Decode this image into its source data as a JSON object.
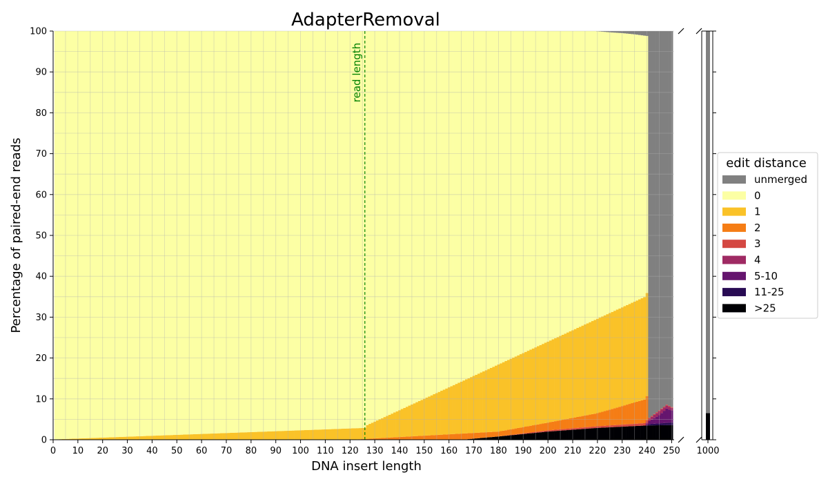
{
  "chart_data": {
    "type": "bar",
    "title": "AdapterRemoval",
    "xlabel": "DNA insert length",
    "ylabel": "Percentage of paired-end reads",
    "xlim": [
      0,
      251
    ],
    "ylim": [
      0,
      100
    ],
    "x_ticks": [
      "0",
      "10",
      "20",
      "30",
      "40",
      "50",
      "60",
      "70",
      "80",
      "90",
      "100",
      "110",
      "120",
      "130",
      "140",
      "150",
      "160",
      "170",
      "180",
      "190",
      "200",
      "210",
      "220",
      "230",
      "240",
      "250"
    ],
    "y_ticks": [
      "0",
      "10",
      "20",
      "30",
      "40",
      "50",
      "60",
      "70",
      "80",
      "90",
      "100"
    ],
    "broken_axis_tick": "1000",
    "grid": true,
    "stacked": true,
    "annotation": {
      "text": "read length",
      "x": 126,
      "color": "#008000",
      "style": "dashed"
    },
    "legend": {
      "title": "edit distance",
      "position": "right",
      "entries": [
        {
          "label": "unmerged",
          "color": "#808080"
        },
        {
          "label": "0",
          "color": "#fcffa4"
        },
        {
          "label": "1",
          "color": "#fac228"
        },
        {
          "label": "2",
          "color": "#f57d15"
        },
        {
          "label": "3",
          "color": "#d44842"
        },
        {
          "label": "4",
          "color": "#9f2a63"
        },
        {
          "label": "5-10",
          "color": "#65156e"
        },
        {
          "label": "11-25",
          "color": "#280b53"
        },
        {
          "label": ">25",
          "color": "#000004"
        }
      ]
    },
    "series_shape": {
      "ed1_top": {
        "x": [
          1,
          126,
          127,
          240
        ],
        "y": [
          0.1,
          2.9,
          3.6,
          35.2
        ]
      },
      "ed2_top": {
        "x": [
          120,
          180,
          200,
          220,
          240
        ],
        "y": [
          0.0,
          2.0,
          4.2,
          6.5,
          10.0
        ]
      },
      "ed25_top": {
        "x": [
          165,
          180,
          200,
          220,
          240,
          250
        ],
        "y": [
          0.0,
          0.8,
          2.0,
          2.9,
          3.5,
          3.6
        ]
      },
      "ed3_top": {
        "x": [
          180,
          200,
          220,
          240
        ],
        "y": [
          0.0,
          0.3,
          0.4,
          0.6
        ]
      },
      "ed4_top": {
        "x": [
          240,
          245,
          250
        ],
        "y": [
          0.5,
          1.0,
          0.6
        ]
      },
      "ed510_top": {
        "x": [
          240,
          245,
          248,
          250
        ],
        "y": [
          0.4,
          2.0,
          3.5,
          3.0
        ]
      },
      "ed1125_top": {
        "x": [
          240,
          250
        ],
        "y": [
          0.3,
          0.6
        ]
      },
      "unmerged_start": {
        "x": [
          220,
          225,
          230,
          235,
          240
        ],
        "y": [
          0.05,
          0.3,
          0.5,
          0.8,
          1.2
        ]
      }
    },
    "series_1000": {
      "gt25": 6.5,
      "unmerged": 93.5
    }
  }
}
